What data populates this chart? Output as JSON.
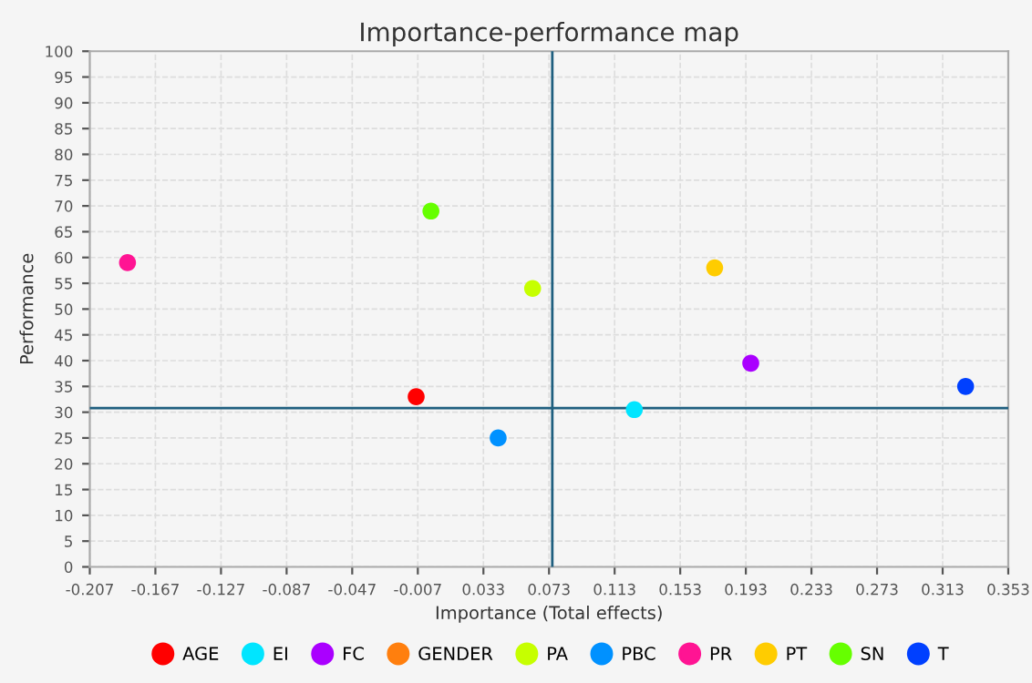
{
  "chart_data": {
    "type": "scatter",
    "title": "Importance-performance map",
    "xlabel": "Importance (Total effects)",
    "ylabel": "Performance",
    "xlim": [
      -0.207,
      0.353
    ],
    "xticks": [
      -0.207,
      -0.167,
      -0.127,
      -0.087,
      -0.047,
      -0.007,
      0.033,
      0.073,
      0.113,
      0.153,
      0.193,
      0.233,
      0.273,
      0.313,
      0.353
    ],
    "ylim": [
      0,
      100
    ],
    "yticks": [
      0,
      5,
      10,
      15,
      20,
      25,
      30,
      35,
      40,
      45,
      50,
      55,
      60,
      65,
      70,
      75,
      80,
      85,
      90,
      95,
      100
    ],
    "grid": true,
    "legend": "bottom",
    "marker": "circle",
    "ref_lines": [
      {
        "axis": "x",
        "value": 0.075,
        "color": "#1f5f7f"
      },
      {
        "axis": "y",
        "value": 30.8,
        "color": "#1f5f7f"
      }
    ],
    "series": [
      {
        "name": "AGE",
        "color": "#ff0000",
        "x": [
          -0.008
        ],
        "values": [
          33
        ]
      },
      {
        "name": "EI",
        "color": "#00e5ff",
        "x": [
          0.125
        ],
        "values": [
          30.5
        ]
      },
      {
        "name": "FC",
        "color": "#aa00ff",
        "x": [
          0.196
        ],
        "values": [
          39.5
        ]
      },
      {
        "name": "GENDER",
        "color": "#ff7f0e"
      },
      {
        "name": "PA",
        "color": "#c6ff00",
        "x": [
          0.063
        ],
        "values": [
          54
        ]
      },
      {
        "name": "PBC",
        "color": "#0091ff",
        "x": [
          0.042
        ],
        "values": [
          25
        ]
      },
      {
        "name": "PR",
        "color": "#ff1493",
        "x": [
          -0.184
        ],
        "values": [
          59
        ]
      },
      {
        "name": "PT",
        "color": "#ffcc00",
        "x": [
          0.174
        ],
        "values": [
          58
        ]
      },
      {
        "name": "SN",
        "color": "#66ff00",
        "x": [
          0.001
        ],
        "values": [
          69
        ]
      },
      {
        "name": "T",
        "color": "#0040ff",
        "x": [
          0.327
        ],
        "values": [
          35
        ]
      }
    ]
  }
}
